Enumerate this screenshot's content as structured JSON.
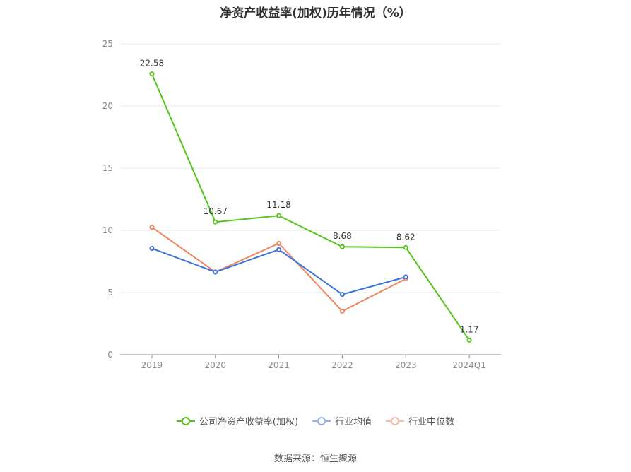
{
  "source_text": "数据来源：恒生聚源",
  "chart_data": {
    "type": "line",
    "title": "净资产收益率(加权)历年情况（%）",
    "categories": [
      "2019",
      "2020",
      "2021",
      "2022",
      "2023",
      "2024Q1"
    ],
    "ylim": [
      0,
      25
    ],
    "yticks": [
      0,
      5,
      10,
      15,
      20,
      25
    ],
    "grid": true,
    "legend_position": "bottom",
    "series": [
      {
        "name": "公司净资产收益率(加权)",
        "color": "#52c41a",
        "values": [
          22.58,
          10.67,
          11.18,
          8.68,
          8.62,
          1.17
        ],
        "show_labels": true
      },
      {
        "name": "行业均值",
        "color": "#3b73e0",
        "values": [
          8.55,
          6.65,
          8.45,
          4.85,
          6.25,
          null
        ],
        "show_labels": false
      },
      {
        "name": "行业中位数",
        "color": "#f0845c",
        "values": [
          10.25,
          6.65,
          8.95,
          3.5,
          6.1,
          null
        ],
        "show_labels": false
      }
    ]
  }
}
